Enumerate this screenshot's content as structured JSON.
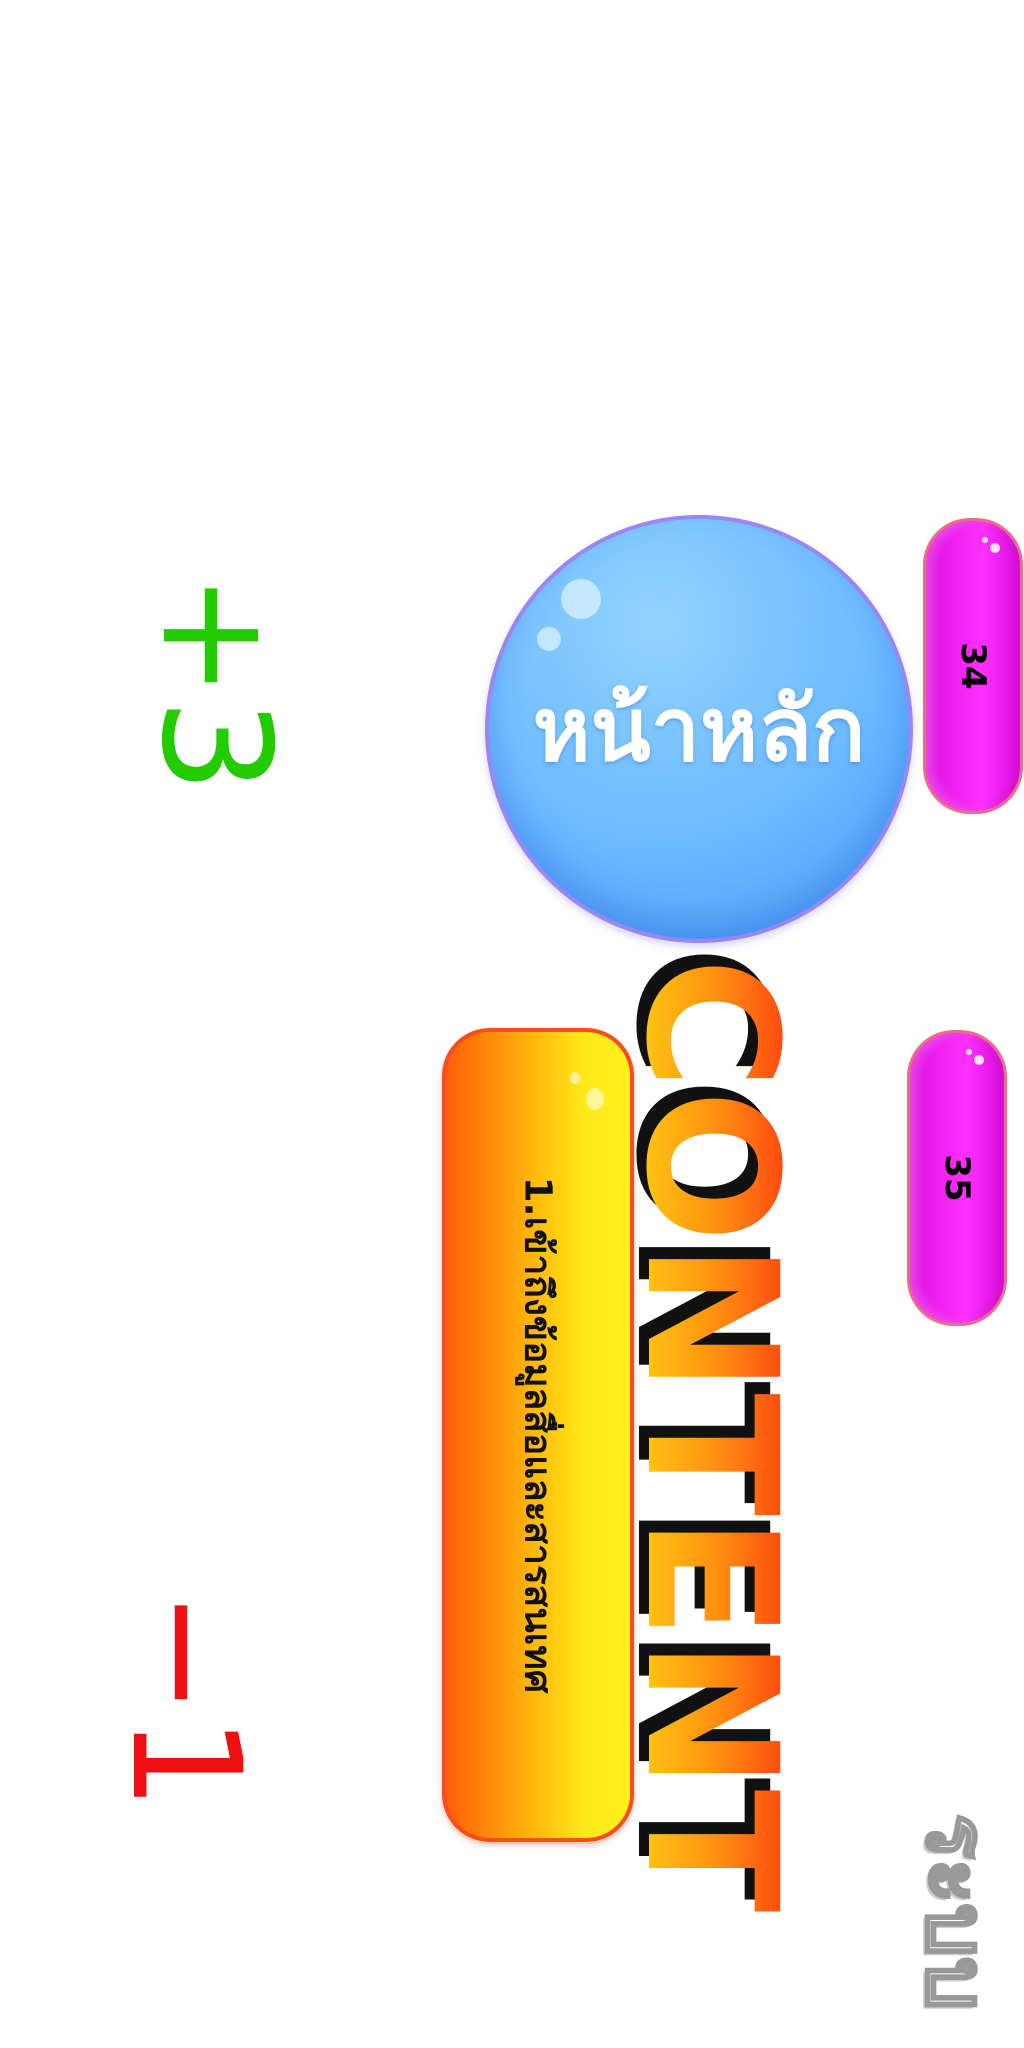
{
  "score": {
    "positive": "+3",
    "negative": "−1"
  },
  "home_button": {
    "label": "หน้าหลัก"
  },
  "pages": {
    "page_a": "34",
    "page_b": "35"
  },
  "heading": {
    "title": "CONTENT"
  },
  "topic": {
    "label": "1.เข้าถึงข้อมูลสื่อและสารสนเทศ"
  },
  "logo": {
    "text": "ระบบ"
  },
  "colors": {
    "positive": "#22cc00",
    "negative": "#ee1111",
    "home_circle": "#6cb9ff",
    "pill": "#ff30ff",
    "topic_button": "#ffb30a"
  }
}
